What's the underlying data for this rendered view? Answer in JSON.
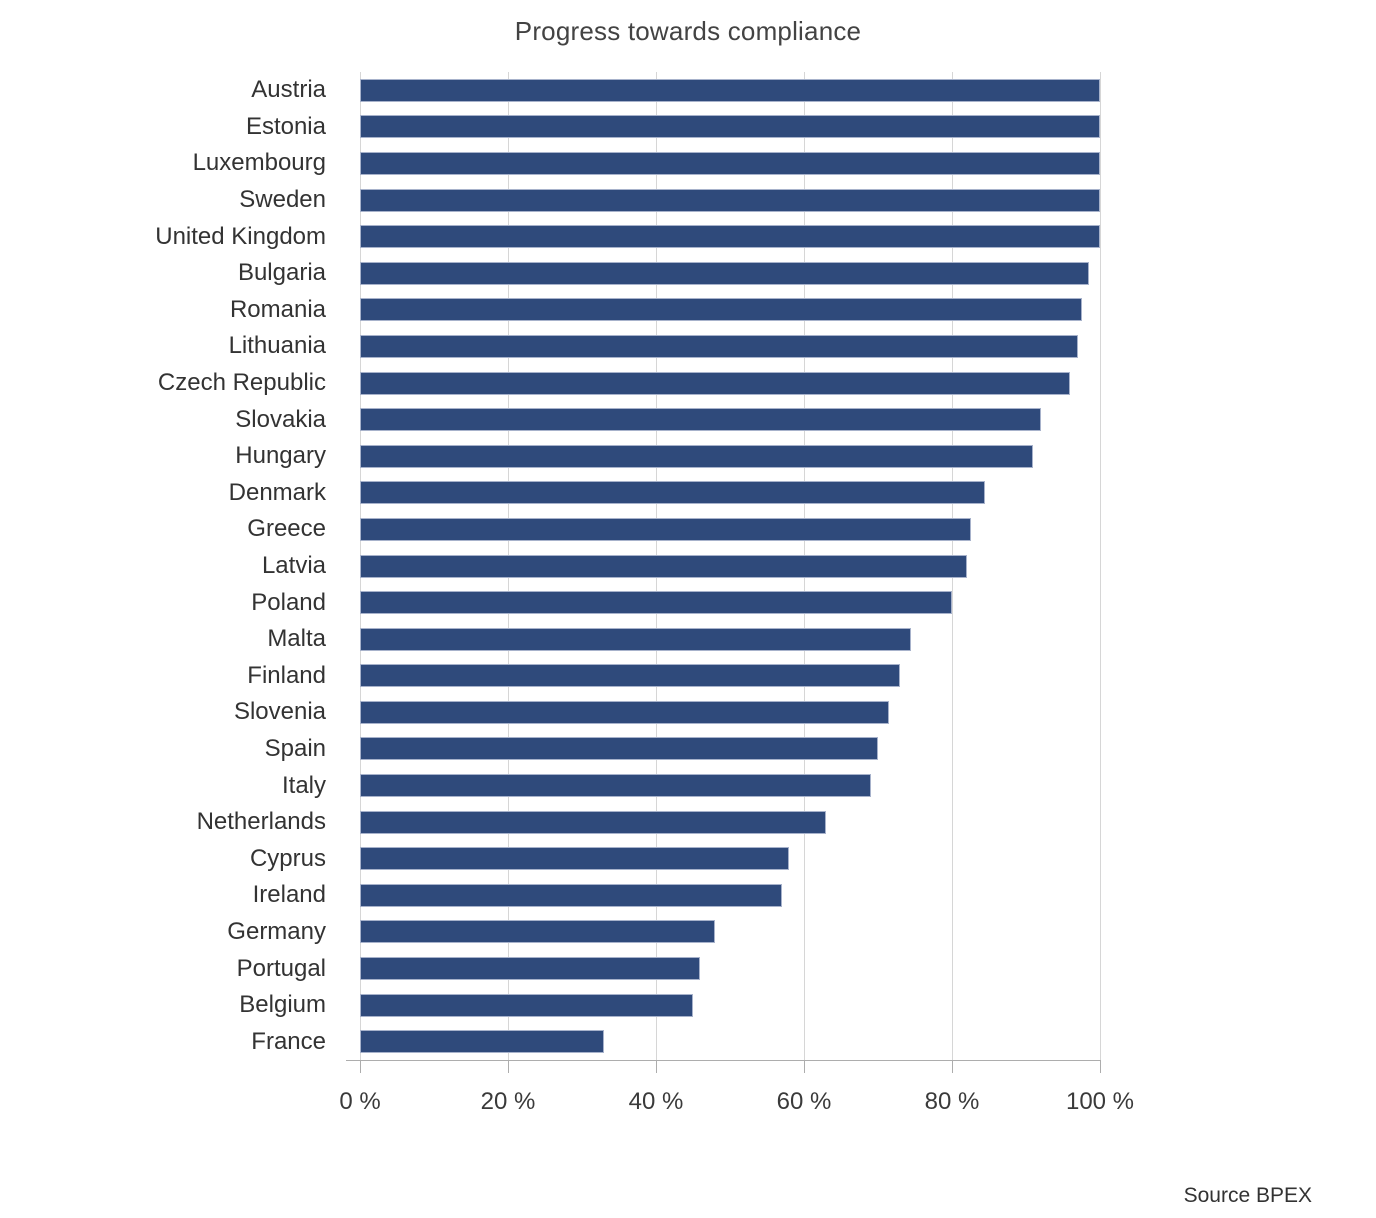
{
  "title": "Progress towards compliance",
  "source": "Source BPEX",
  "colors": {
    "bar": "#2f4a7b",
    "bar_border": "#a7b2cb",
    "gridline": "#d6d6d6",
    "axis": "#adadad",
    "label_text": "#333333",
    "title_text": "#434343"
  },
  "chart_data": {
    "type": "bar",
    "orientation": "horizontal",
    "title": "Progress towards compliance",
    "xlabel": "",
    "ylabel": "",
    "xlim": [
      0,
      100
    ],
    "grid": true,
    "legend": false,
    "x_tick_labels": [
      "0 %",
      "20 %",
      "40 %",
      "60 %",
      "80 %",
      "100 %"
    ],
    "x_tick_values": [
      0,
      20,
      40,
      60,
      80,
      100
    ],
    "categories": [
      "Austria",
      "Estonia",
      "Luxembourg",
      "Sweden",
      "United Kingdom",
      "Bulgaria",
      "Romania",
      "Lithuania",
      "Czech Republic",
      "Slovakia",
      "Hungary",
      "Denmark",
      "Greece",
      "Latvia",
      "Poland",
      "Malta",
      "Finland",
      "Slovenia",
      "Spain",
      "Italy",
      "Netherlands",
      "Cyprus",
      "Ireland",
      "Germany",
      "Portugal",
      "Belgium",
      "France"
    ],
    "values": [
      100,
      100,
      100,
      100,
      100,
      98.5,
      97.5,
      97,
      96,
      92,
      91,
      84.5,
      82.5,
      82,
      80,
      74.5,
      73,
      71.5,
      70,
      69,
      63,
      58,
      57,
      48,
      46,
      45,
      33
    ],
    "unit": "%"
  }
}
